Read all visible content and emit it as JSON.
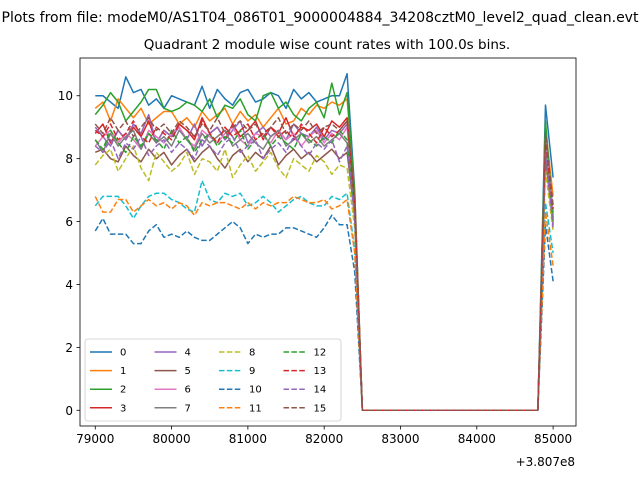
{
  "figure": {
    "suptitle": "Plots from file: modeM0/AS1T04_086T01_9000004884_34208cztM0_level2_quad_clean.evt",
    "offset_label": "+3.807e8"
  },
  "colors": {
    "0": "#1f77b4",
    "1": "#ff7f0e",
    "2": "#2ca02c",
    "3": "#d62728",
    "4": "#9467bd",
    "5": "#8c564b",
    "6": "#e377c2",
    "7": "#7f7f7f",
    "8": "#bcbd22",
    "9": "#17becf",
    "10": "#1f77b4",
    "11": "#ff7f0e",
    "12": "#2ca02c",
    "13": "#d62728",
    "14": "#9467bd",
    "15": "#8c564b"
  },
  "chart_data": {
    "type": "line",
    "title": "Quadrant 2 module wise count rates with 100.0s bins.",
    "xlabel": "",
    "ylabel": "",
    "x_offset": 380700000,
    "xlim": [
      78800,
      85300
    ],
    "ylim": [
      -0.5,
      11.2
    ],
    "xticks": [
      79000,
      80000,
      81000,
      82000,
      83000,
      84000,
      85000
    ],
    "yticks": [
      0,
      2,
      4,
      6,
      8,
      10
    ],
    "grid": false,
    "legend": {
      "placement": "lower-left",
      "ncol": 4
    },
    "x": [
      79000,
      79100,
      79200,
      79300,
      79400,
      79500,
      79600,
      79700,
      79800,
      79900,
      80000,
      80100,
      80200,
      80300,
      80400,
      80500,
      80600,
      80700,
      80800,
      80900,
      81000,
      81100,
      81200,
      81300,
      81400,
      81500,
      81600,
      81700,
      81800,
      81900,
      82000,
      82100,
      82200,
      82300,
      82400,
      82500,
      82600,
      82700,
      82800,
      82900,
      83000,
      83100,
      83200,
      83300,
      83400,
      83500,
      83600,
      83700,
      83800,
      83900,
      84000,
      84100,
      84200,
      84300,
      84400,
      84500,
      84600,
      84700,
      84800,
      84900,
      85000
    ],
    "series": [
      {
        "name": "0",
        "dash": "solid",
        "values": [
          10.0,
          10.0,
          9.8,
          9.6,
          10.6,
          10.1,
          10.2,
          9.7,
          9.9,
          9.6,
          10.0,
          9.9,
          9.8,
          9.7,
          10.3,
          9.6,
          10.2,
          9.9,
          9.7,
          10.1,
          10.2,
          9.8,
          9.9,
          10.1,
          10.0,
          9.6,
          10.2,
          9.9,
          10.1,
          9.8,
          9.9,
          10.0,
          10.0,
          10.7,
          7.0,
          0,
          0,
          0,
          0,
          0,
          0,
          0,
          0,
          0,
          0,
          0,
          0,
          0,
          0,
          0,
          0,
          0,
          0,
          0,
          0,
          0,
          0,
          0,
          0,
          9.7,
          7.4
        ]
      },
      {
        "name": "1",
        "dash": "solid",
        "values": [
          9.6,
          9.8,
          9.2,
          9.9,
          9.6,
          9.3,
          9.6,
          9.1,
          9.3,
          9.5,
          9.5,
          9.1,
          9.3,
          9.0,
          9.5,
          9.2,
          9.4,
          9.6,
          9.1,
          9.5,
          9.2,
          9.4,
          9.0,
          9.3,
          9.6,
          9.1,
          9.2,
          9.6,
          9.4,
          9.7,
          9.6,
          9.8,
          9.7,
          9.9,
          6.9,
          0,
          0,
          0,
          0,
          0,
          0,
          0,
          0,
          0,
          0,
          0,
          0,
          0,
          0,
          0,
          0,
          0,
          0,
          0,
          0,
          0,
          0,
          0,
          0,
          9.0,
          6.8
        ]
      },
      {
        "name": "2",
        "dash": "solid",
        "values": [
          9.4,
          9.7,
          10.1,
          9.8,
          9.2,
          9.5,
          9.8,
          10.2,
          10.2,
          9.6,
          9.5,
          9.6,
          9.8,
          9.7,
          9.5,
          9.9,
          9.3,
          9.7,
          9.6,
          9.9,
          9.4,
          9.2,
          10.0,
          10.1,
          9.6,
          9.8,
          9.4,
          9.2,
          9.6,
          9.8,
          9.3,
          10.4,
          9.4,
          10.1,
          6.8,
          0,
          0,
          0,
          0,
          0,
          0,
          0,
          0,
          0,
          0,
          0,
          0,
          0,
          0,
          0,
          0,
          0,
          0,
          0,
          0,
          0,
          0,
          0,
          0,
          9.2,
          6.1
        ]
      },
      {
        "name": "3",
        "dash": "solid",
        "values": [
          8.8,
          9.1,
          8.5,
          8.9,
          8.6,
          9.0,
          8.7,
          9.2,
          8.5,
          8.9,
          8.7,
          9.1,
          8.9,
          8.6,
          9.3,
          8.8,
          9.0,
          8.6,
          9.1,
          8.7,
          8.9,
          9.2,
          8.6,
          9.0,
          8.8,
          9.3,
          8.7,
          9.0,
          8.9,
          9.1,
          8.7,
          9.2,
          9.0,
          9.3,
          6.6,
          0,
          0,
          0,
          0,
          0,
          0,
          0,
          0,
          0,
          0,
          0,
          0,
          0,
          0,
          0,
          0,
          0,
          0,
          0,
          0,
          0,
          0,
          0,
          0,
          8.4,
          6.2
        ]
      },
      {
        "name": "4",
        "dash": "solid",
        "values": [
          9.0,
          8.7,
          8.4,
          8.9,
          8.6,
          9.1,
          8.8,
          9.4,
          8.5,
          8.9,
          8.7,
          9.0,
          8.6,
          9.1,
          8.4,
          8.8,
          9.0,
          8.6,
          8.9,
          9.2,
          8.5,
          8.8,
          9.0,
          8.7,
          8.9,
          8.6,
          9.1,
          8.8,
          8.7,
          9.0,
          8.6,
          8.9,
          8.8,
          9.1,
          6.5,
          0,
          0,
          0,
          0,
          0,
          0,
          0,
          0,
          0,
          0,
          0,
          0,
          0,
          0,
          0,
          0,
          0,
          0,
          0,
          0,
          0,
          0,
          0,
          0,
          8.5,
          6.3
        ]
      },
      {
        "name": "5",
        "dash": "solid",
        "values": [
          8.2,
          8.3,
          8.0,
          7.9,
          8.4,
          8.1,
          7.9,
          8.3,
          8.0,
          8.2,
          7.8,
          8.1,
          8.3,
          7.9,
          8.2,
          8.4,
          8.0,
          7.7,
          8.1,
          8.3,
          7.9,
          8.2,
          8.0,
          8.4,
          7.8,
          8.1,
          8.3,
          8.0,
          8.2,
          7.9,
          8.1,
          8.3,
          8.0,
          8.2,
          6.2,
          0,
          0,
          0,
          0,
          0,
          0,
          0,
          0,
          0,
          0,
          0,
          0,
          0,
          0,
          0,
          0,
          0,
          0,
          0,
          0,
          0,
          0,
          0,
          0,
          8.0,
          5.9
        ]
      },
      {
        "name": "6",
        "dash": "solid",
        "values": [
          8.4,
          8.7,
          8.9,
          8.5,
          8.8,
          8.6,
          8.3,
          8.9,
          8.7,
          8.5,
          8.8,
          9.0,
          8.6,
          8.4,
          8.9,
          8.7,
          8.5,
          8.8,
          9.0,
          8.6,
          8.4,
          8.8,
          8.7,
          8.5,
          8.9,
          8.6,
          8.8,
          8.4,
          8.7,
          8.9,
          8.5,
          8.8,
          8.6,
          9.0,
          6.4,
          0,
          0,
          0,
          0,
          0,
          0,
          0,
          0,
          0,
          0,
          0,
          0,
          0,
          0,
          0,
          0,
          0,
          0,
          0,
          0,
          0,
          0,
          0,
          0,
          8.6,
          6.1
        ]
      },
      {
        "name": "7",
        "dash": "solid",
        "values": [
          8.6,
          8.2,
          8.8,
          8.4,
          8.7,
          8.9,
          8.3,
          8.8,
          8.5,
          8.7,
          8.4,
          8.9,
          8.6,
          8.3,
          8.8,
          8.5,
          8.7,
          8.9,
          8.4,
          8.6,
          8.8,
          8.5,
          8.3,
          8.7,
          8.9,
          8.4,
          8.6,
          8.8,
          8.5,
          8.7,
          8.4,
          8.6,
          8.8,
          8.5,
          6.3,
          0,
          0,
          0,
          0,
          0,
          0,
          0,
          0,
          0,
          0,
          0,
          0,
          0,
          0,
          0,
          0,
          0,
          0,
          0,
          0,
          0,
          0,
          0,
          0,
          8.3,
          6.0
        ]
      },
      {
        "name": "8",
        "dash": "dashed",
        "values": [
          7.8,
          8.1,
          8.3,
          7.6,
          8.0,
          8.4,
          7.7,
          7.3,
          8.2,
          7.9,
          7.6,
          7.8,
          8.2,
          7.5,
          8.0,
          7.9,
          7.6,
          8.3,
          7.4,
          7.8,
          8.1,
          7.6,
          7.9,
          8.2,
          7.7,
          7.4,
          8.0,
          7.8,
          7.6,
          8.1,
          7.9,
          7.5,
          7.8,
          7.7,
          5.8,
          0,
          0,
          0,
          0,
          0,
          0,
          0,
          0,
          0,
          0,
          0,
          0,
          0,
          0,
          0,
          0,
          0,
          0,
          0,
          0,
          0,
          0,
          0,
          0,
          7.6,
          5.7
        ]
      },
      {
        "name": "9",
        "dash": "dashed",
        "values": [
          6.5,
          6.8,
          6.8,
          6.8,
          6.5,
          6.1,
          6.5,
          6.8,
          6.9,
          6.9,
          6.7,
          6.6,
          6.4,
          6.3,
          7.3,
          6.7,
          6.6,
          6.9,
          6.8,
          6.9,
          6.5,
          6.6,
          6.8,
          6.6,
          6.3,
          6.5,
          6.7,
          6.8,
          6.6,
          6.5,
          6.5,
          6.8,
          6.7,
          6.9,
          5.1,
          0,
          0,
          0,
          0,
          0,
          0,
          0,
          0,
          0,
          0,
          0,
          0,
          0,
          0,
          0,
          0,
          0,
          0,
          0,
          0,
          0,
          0,
          0,
          0,
          6.6,
          5.0
        ]
      },
      {
        "name": "10",
        "dash": "dashed",
        "values": [
          5.7,
          6.1,
          5.6,
          5.6,
          5.6,
          5.3,
          5.3,
          5.7,
          5.9,
          5.5,
          5.6,
          5.5,
          5.7,
          5.5,
          5.4,
          5.4,
          5.6,
          5.8,
          6.0,
          5.8,
          5.3,
          5.6,
          5.5,
          5.6,
          5.6,
          5.8,
          5.8,
          5.7,
          5.6,
          5.5,
          5.8,
          6.2,
          5.9,
          5.9,
          4.4,
          0,
          0,
          0,
          0,
          0,
          0,
          0,
          0,
          0,
          0,
          0,
          0,
          0,
          0,
          0,
          0,
          0,
          0,
          0,
          0,
          0,
          0,
          0,
          0,
          5.9,
          4.1
        ]
      },
      {
        "name": "11",
        "dash": "dashed",
        "values": [
          6.8,
          6.3,
          6.3,
          6.7,
          6.7,
          6.3,
          6.5,
          6.7,
          6.5,
          6.6,
          6.4,
          6.6,
          6.5,
          6.2,
          6.6,
          6.5,
          6.6,
          6.6,
          6.5,
          6.4,
          6.6,
          6.4,
          6.6,
          6.5,
          6.6,
          6.6,
          6.8,
          6.7,
          6.6,
          6.6,
          6.7,
          6.4,
          6.5,
          6.7,
          5.0,
          0,
          0,
          0,
          0,
          0,
          0,
          0,
          0,
          0,
          0,
          0,
          0,
          0,
          0,
          0,
          0,
          0,
          0,
          0,
          0,
          0,
          0,
          0,
          0,
          6.3,
          4.6
        ]
      },
      {
        "name": "12",
        "dash": "dashed",
        "values": [
          8.6,
          8.3,
          8.9,
          8.5,
          8.2,
          8.7,
          8.4,
          8.8,
          8.6,
          8.3,
          8.9,
          8.5,
          8.7,
          8.2,
          8.6,
          8.8,
          8.4,
          8.7,
          8.5,
          8.9,
          8.3,
          8.6,
          8.8,
          8.4,
          8.7,
          8.5,
          8.3,
          8.8,
          8.6,
          8.4,
          8.7,
          8.5,
          8.9,
          8.6,
          6.3,
          0,
          0,
          0,
          0,
          0,
          0,
          0,
          0,
          0,
          0,
          0,
          0,
          0,
          0,
          0,
          0,
          0,
          0,
          0,
          0,
          0,
          0,
          0,
          0,
          8.6,
          6.0
        ]
      },
      {
        "name": "13",
        "dash": "dashed",
        "values": [
          8.9,
          8.7,
          9.1,
          8.6,
          8.8,
          9.2,
          8.7,
          8.5,
          9.0,
          8.8,
          8.6,
          9.1,
          8.9,
          8.7,
          9.2,
          8.8,
          8.5,
          9.0,
          8.7,
          8.9,
          9.1,
          8.6,
          8.8,
          9.0,
          8.7,
          8.9,
          8.6,
          9.1,
          8.8,
          8.5,
          9.0,
          8.7,
          8.9,
          9.2,
          6.6,
          0,
          0,
          0,
          0,
          0,
          0,
          0,
          0,
          0,
          0,
          0,
          0,
          0,
          0,
          0,
          0,
          0,
          0,
          0,
          0,
          0,
          0,
          0,
          0,
          8.5,
          6.4
        ]
      },
      {
        "name": "14",
        "dash": "dashed",
        "values": [
          8.4,
          8.2,
          8.6,
          8.0,
          8.5,
          8.3,
          8.7,
          8.1,
          8.4,
          8.6,
          8.2,
          8.5,
          8.3,
          8.0,
          8.6,
          8.4,
          8.1,
          8.5,
          8.7,
          8.2,
          8.4,
          8.6,
          8.0,
          8.3,
          8.5,
          8.2,
          8.7,
          8.4,
          8.1,
          8.5,
          8.3,
          8.6,
          7.9,
          8.4,
          6.1,
          0,
          0,
          0,
          0,
          0,
          0,
          0,
          0,
          0,
          0,
          0,
          0,
          0,
          0,
          0,
          0,
          0,
          0,
          0,
          0,
          0,
          0,
          0,
          0,
          8.2,
          5.8
        ]
      },
      {
        "name": "15",
        "dash": "dashed",
        "values": [
          9.1,
          8.8,
          9.3,
          8.9,
          9.2,
          8.7,
          9.0,
          9.3,
          8.9,
          9.1,
          8.8,
          9.2,
          9.0,
          8.7,
          9.1,
          8.9,
          9.3,
          8.8,
          9.0,
          9.2,
          8.9,
          9.1,
          8.7,
          9.0,
          9.3,
          8.8,
          9.1,
          8.9,
          9.2,
          8.8,
          9.0,
          9.1,
          8.9,
          9.2,
          6.7,
          0,
          0,
          0,
          0,
          0,
          0,
          0,
          0,
          0,
          0,
          0,
          0,
          0,
          0,
          0,
          0,
          0,
          0,
          0,
          0,
          0,
          0,
          0,
          0,
          8.8,
          6.5
        ]
      }
    ]
  }
}
